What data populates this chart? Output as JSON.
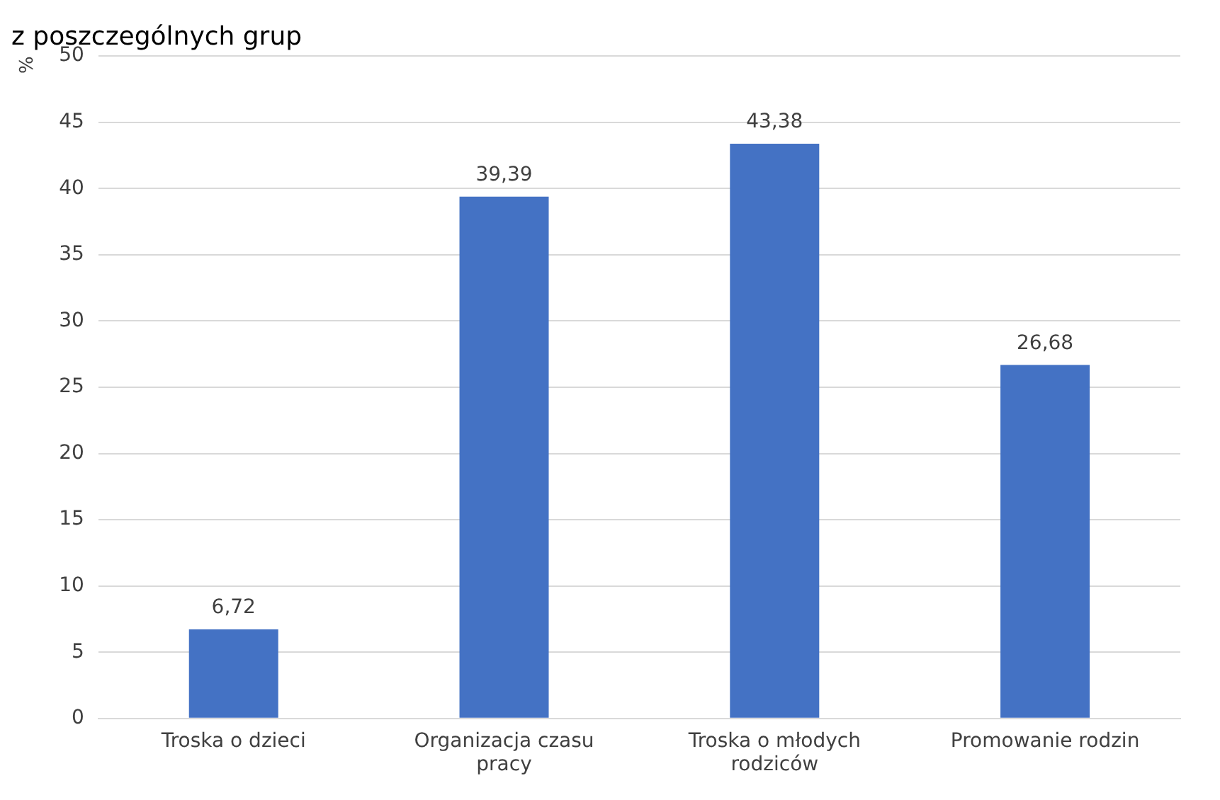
{
  "chart_data": {
    "type": "bar",
    "title": "z poszczególnych grup",
    "ylabel": "%",
    "categories": [
      "Troska o dzieci",
      "Organizacja czasu pracy",
      "Troska o młodych rodziców",
      "Promowanie rodzin"
    ],
    "values": [
      6.72,
      39.39,
      43.38,
      26.68
    ],
    "value_labels": [
      "6,72",
      "39,39",
      "43,38",
      "26,68"
    ],
    "color": "#4472c4",
    "ylim": [
      0,
      50
    ],
    "yticks": [
      0,
      5,
      10,
      15,
      20,
      25,
      30,
      35,
      40,
      45,
      50
    ],
    "grid": "y",
    "legend": false
  }
}
